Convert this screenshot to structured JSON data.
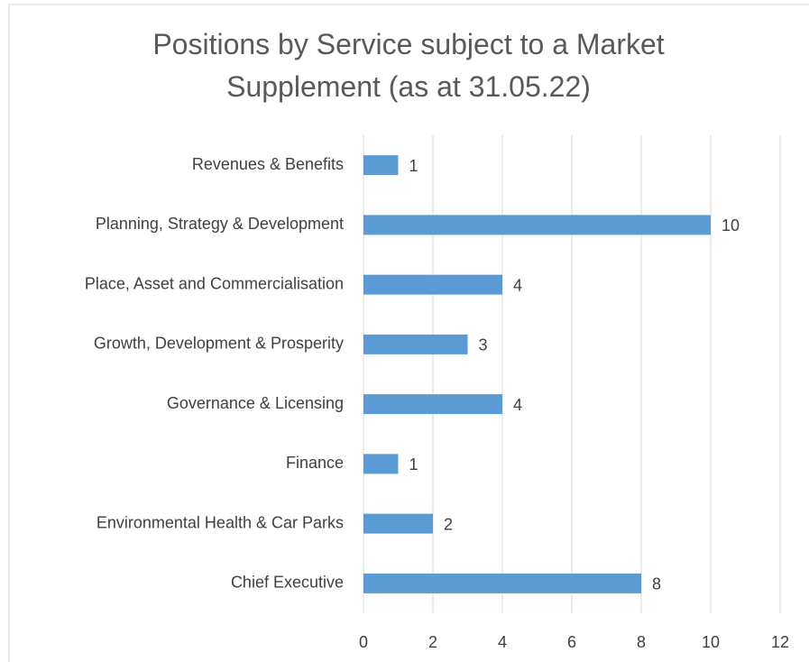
{
  "chart_data": {
    "type": "bar",
    "orientation": "horizontal",
    "title": "Positions by Service subject to a Market Supplement (as at 31.05.22)",
    "categories": [
      "Revenues & Benefits",
      "Planning, Strategy & Development",
      "Place, Asset and Commercialisation",
      "Growth, Development & Prosperity",
      "Governance & Licensing",
      "Finance",
      "Environmental Health & Car Parks",
      "Chief Executive"
    ],
    "values": [
      1,
      10,
      4,
      3,
      4,
      1,
      2,
      8
    ],
    "color": "#5b9bd5",
    "xlim": [
      0,
      12
    ],
    "xticks": [
      0,
      2,
      4,
      6,
      8,
      10,
      12
    ],
    "grid": true
  }
}
